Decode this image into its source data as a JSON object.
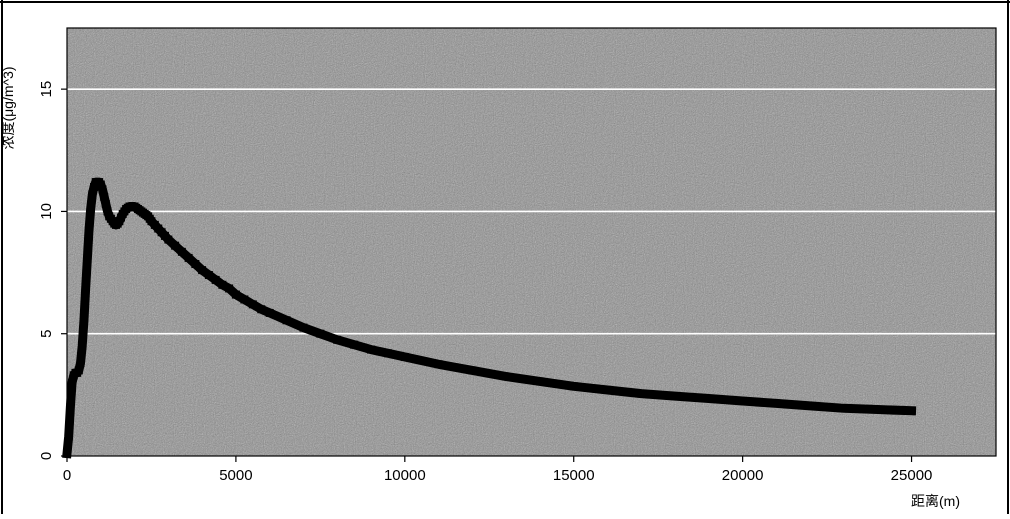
{
  "chart_data": {
    "type": "line",
    "title": "",
    "xlabel": "距离(m)",
    "ylabel": "浓度(μg/m^3)",
    "xlim": [
      0,
      27500
    ],
    "ylim": [
      0,
      17.5
    ],
    "x_ticks": [
      0,
      5000,
      10000,
      15000,
      20000,
      25000
    ],
    "y_ticks": [
      0,
      5,
      10,
      15
    ],
    "grid": "horizontal",
    "series": [
      {
        "marker": "square",
        "color": "#000000",
        "x": [
          0,
          50,
          100,
          150,
          200,
          250,
          300,
          350,
          400,
          450,
          500,
          550,
          600,
          650,
          700,
          750,
          800,
          850,
          900,
          950,
          1000,
          1050,
          1100,
          1150,
          1200,
          1250,
          1300,
          1350,
          1400,
          1450,
          1500,
          1550,
          1600,
          1650,
          1700,
          1750,
          1800,
          1850,
          1900,
          1950,
          2000,
          2050,
          2100,
          2150,
          2200,
          2250,
          2300,
          2350,
          2400,
          2450,
          2500,
          2600,
          2700,
          2800,
          2900,
          3000,
          3200,
          3400,
          3600,
          3800,
          4000,
          4200,
          4400,
          4600,
          4800,
          5000,
          5250,
          5500,
          5750,
          6000,
          6500,
          7000,
          7500,
          8000,
          8500,
          9000,
          9500,
          10000,
          11000,
          12000,
          13000,
          14000,
          15000,
          16000,
          17000,
          18000,
          19000,
          20000,
          21000,
          22000,
          23000,
          24000,
          25000
        ],
        "y": [
          0.1,
          0.8,
          2.0,
          3.0,
          3.3,
          3.4,
          3.4,
          3.5,
          3.8,
          4.5,
          5.5,
          6.8,
          8.0,
          9.2,
          10.1,
          10.7,
          11.0,
          11.2,
          11.2,
          11.2,
          11.1,
          10.9,
          10.6,
          10.3,
          10.0,
          9.8,
          9.7,
          9.6,
          9.5,
          9.45,
          9.5,
          9.6,
          9.75,
          9.9,
          10.0,
          10.1,
          10.15,
          10.2,
          10.2,
          10.2,
          10.2,
          10.15,
          10.1,
          10.05,
          10.0,
          9.95,
          9.9,
          9.85,
          9.8,
          9.7,
          9.6,
          9.45,
          9.3,
          9.15,
          9.0,
          8.85,
          8.6,
          8.35,
          8.1,
          7.85,
          7.6,
          7.4,
          7.2,
          7.0,
          6.85,
          6.6,
          6.4,
          6.2,
          6.0,
          5.85,
          5.55,
          5.25,
          5.0,
          4.75,
          4.55,
          4.35,
          4.2,
          4.05,
          3.75,
          3.5,
          3.25,
          3.05,
          2.85,
          2.7,
          2.55,
          2.45,
          2.35,
          2.25,
          2.15,
          2.05,
          1.95,
          1.9,
          1.85
        ]
      }
    ]
  }
}
